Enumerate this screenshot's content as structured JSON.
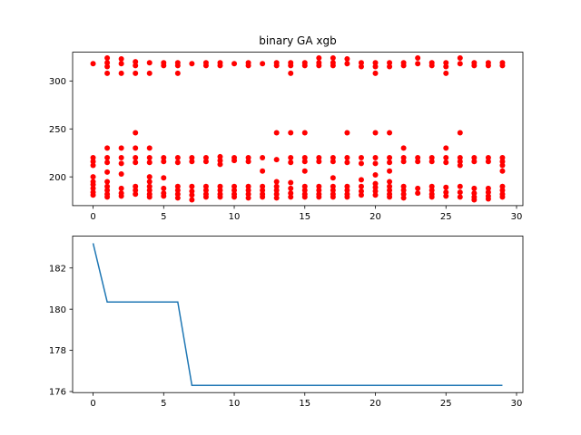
{
  "chart_data": [
    {
      "type": "scatter",
      "title": "binary GA xgb",
      "xlabel": "",
      "ylabel": "",
      "xlim": [
        -1.45,
        30.45
      ],
      "ylim": [
        170,
        330
      ],
      "xticks": [
        0,
        5,
        10,
        15,
        20,
        25,
        30
      ],
      "yticks": [
        200,
        250,
        300
      ],
      "grid": false,
      "color": "#ff0000",
      "series": [
        {
          "points": [
            [
              0,
              318
            ],
            [
              0,
              220
            ],
            [
              0,
              216
            ],
            [
              0,
              212
            ],
            [
              0,
              200
            ],
            [
              0,
              195
            ],
            [
              0,
              192
            ],
            [
              0,
              188
            ],
            [
              0,
              184
            ],
            [
              0,
              181
            ],
            [
              1,
              324
            ],
            [
              1,
              319
            ],
            [
              1,
              315
            ],
            [
              1,
              308
            ],
            [
              1,
              230
            ],
            [
              1,
              220
            ],
            [
              1,
              215
            ],
            [
              1,
              205
            ],
            [
              1,
              195
            ],
            [
              1,
              190
            ],
            [
              1,
              186
            ],
            [
              1,
              182
            ],
            [
              1,
              179
            ],
            [
              2,
              323
            ],
            [
              2,
              318
            ],
            [
              2,
              308
            ],
            [
              2,
              230
            ],
            [
              2,
              220
            ],
            [
              2,
              214
            ],
            [
              2,
              203
            ],
            [
              2,
              188
            ],
            [
              2,
              183
            ],
            [
              2,
              180
            ],
            [
              3,
              320
            ],
            [
              3,
              316
            ],
            [
              3,
              308
            ],
            [
              3,
              246
            ],
            [
              3,
              230
            ],
            [
              3,
              220
            ],
            [
              3,
              215
            ],
            [
              3,
              190
            ],
            [
              3,
              186
            ],
            [
              3,
              182
            ],
            [
              4,
              319
            ],
            [
              4,
              308
            ],
            [
              4,
              230
            ],
            [
              4,
              220
            ],
            [
              4,
              215
            ],
            [
              4,
              200
            ],
            [
              4,
              195
            ],
            [
              4,
              190
            ],
            [
              4,
              186
            ],
            [
              4,
              182
            ],
            [
              4,
              179
            ],
            [
              5,
              319
            ],
            [
              5,
              316
            ],
            [
              5,
              220
            ],
            [
              5,
              216
            ],
            [
              5,
              199
            ],
            [
              5,
              188
            ],
            [
              5,
              183
            ],
            [
              5,
              180
            ],
            [
              6,
              319
            ],
            [
              6,
              316
            ],
            [
              6,
              308
            ],
            [
              6,
              220
            ],
            [
              6,
              215
            ],
            [
              6,
              190
            ],
            [
              6,
              186
            ],
            [
              6,
              182
            ],
            [
              6,
              178
            ],
            [
              7,
              318
            ],
            [
              7,
              220
            ],
            [
              7,
              216
            ],
            [
              7,
              190
            ],
            [
              7,
              185
            ],
            [
              7,
              181
            ],
            [
              7,
              176
            ],
            [
              8,
              319
            ],
            [
              8,
              316
            ],
            [
              8,
              220
            ],
            [
              8,
              216
            ],
            [
              8,
              190
            ],
            [
              8,
              186
            ],
            [
              8,
              182
            ],
            [
              8,
              179
            ],
            [
              9,
              319
            ],
            [
              9,
              316
            ],
            [
              9,
              221
            ],
            [
              9,
              217
            ],
            [
              9,
              213
            ],
            [
              9,
              190
            ],
            [
              9,
              186
            ],
            [
              9,
              182
            ],
            [
              9,
              179
            ],
            [
              10,
              318
            ],
            [
              10,
              220
            ],
            [
              10,
              217
            ],
            [
              10,
              190
            ],
            [
              10,
              186
            ],
            [
              10,
              182
            ],
            [
              10,
              179
            ],
            [
              11,
              319
            ],
            [
              11,
              316
            ],
            [
              11,
              220
            ],
            [
              11,
              216
            ],
            [
              11,
              190
            ],
            [
              11,
              186
            ],
            [
              11,
              182
            ],
            [
              11,
              178
            ],
            [
              12,
              318
            ],
            [
              12,
              220
            ],
            [
              12,
              206
            ],
            [
              12,
              190
            ],
            [
              12,
              186
            ],
            [
              12,
              182
            ],
            [
              12,
              179
            ],
            [
              13,
              319
            ],
            [
              13,
              316
            ],
            [
              13,
              246
            ],
            [
              13,
              218
            ],
            [
              13,
              195
            ],
            [
              13,
              190
            ],
            [
              13,
              186
            ],
            [
              13,
              182
            ],
            [
              13,
              178
            ],
            [
              14,
              319
            ],
            [
              14,
              316
            ],
            [
              14,
              308
            ],
            [
              14,
              246
            ],
            [
              14,
              220
            ],
            [
              14,
              215
            ],
            [
              14,
              194
            ],
            [
              14,
              188
            ],
            [
              14,
              183
            ],
            [
              14,
              179
            ],
            [
              15,
              319
            ],
            [
              15,
              316
            ],
            [
              15,
              246
            ],
            [
              15,
              220
            ],
            [
              15,
              216
            ],
            [
              15,
              206
            ],
            [
              15,
              190
            ],
            [
              15,
              186
            ],
            [
              15,
              182
            ],
            [
              15,
              179
            ],
            [
              16,
              324
            ],
            [
              16,
              319
            ],
            [
              16,
              316
            ],
            [
              16,
              220
            ],
            [
              16,
              216
            ],
            [
              16,
              190
            ],
            [
              16,
              186
            ],
            [
              16,
              182
            ],
            [
              16,
              179
            ],
            [
              17,
              324
            ],
            [
              17,
              319
            ],
            [
              17,
              316
            ],
            [
              17,
              220
            ],
            [
              17,
              216
            ],
            [
              17,
              199
            ],
            [
              17,
              190
            ],
            [
              17,
              186
            ],
            [
              17,
              182
            ],
            [
              17,
              179
            ],
            [
              18,
              323
            ],
            [
              18,
              318
            ],
            [
              18,
              246
            ],
            [
              18,
              220
            ],
            [
              18,
              215
            ],
            [
              18,
              190
            ],
            [
              18,
              186
            ],
            [
              18,
              182
            ],
            [
              18,
              179
            ],
            [
              19,
              319
            ],
            [
              19,
              315
            ],
            [
              19,
              220
            ],
            [
              19,
              214
            ],
            [
              19,
              197
            ],
            [
              19,
              190
            ],
            [
              19,
              185
            ],
            [
              19,
              181
            ],
            [
              20,
              319
            ],
            [
              20,
              315
            ],
            [
              20,
              308
            ],
            [
              20,
              246
            ],
            [
              20,
              220
            ],
            [
              20,
              214
            ],
            [
              20,
              202
            ],
            [
              20,
              193
            ],
            [
              20,
              189
            ],
            [
              20,
              185
            ],
            [
              20,
              181
            ],
            [
              21,
              319
            ],
            [
              21,
              315
            ],
            [
              21,
              246
            ],
            [
              21,
              220
            ],
            [
              21,
              215
            ],
            [
              21,
              206
            ],
            [
              21,
              195
            ],
            [
              21,
              190
            ],
            [
              21,
              186
            ],
            [
              21,
              182
            ],
            [
              21,
              179
            ],
            [
              22,
              319
            ],
            [
              22,
              316
            ],
            [
              22,
              230
            ],
            [
              22,
              220
            ],
            [
              22,
              216
            ],
            [
              22,
              190
            ],
            [
              22,
              186
            ],
            [
              22,
              182
            ],
            [
              22,
              178
            ],
            [
              23,
              324
            ],
            [
              23,
              318
            ],
            [
              23,
              220
            ],
            [
              23,
              216
            ],
            [
              23,
              188
            ],
            [
              23,
              183
            ],
            [
              24,
              319
            ],
            [
              24,
              316
            ],
            [
              24,
              220
            ],
            [
              24,
              216
            ],
            [
              24,
              190
            ],
            [
              24,
              186
            ],
            [
              24,
              182
            ],
            [
              24,
              179
            ],
            [
              25,
              319
            ],
            [
              25,
              315
            ],
            [
              25,
              308
            ],
            [
              25,
              230
            ],
            [
              25,
              220
            ],
            [
              25,
              215
            ],
            [
              25,
              189
            ],
            [
              25,
              184
            ],
            [
              25,
              180
            ],
            [
              26,
              324
            ],
            [
              26,
              318
            ],
            [
              26,
              246
            ],
            [
              26,
              220
            ],
            [
              26,
              216
            ],
            [
              26,
              212
            ],
            [
              26,
              190
            ],
            [
              26,
              184
            ],
            [
              26,
              179
            ],
            [
              27,
              319
            ],
            [
              27,
              316
            ],
            [
              27,
              220
            ],
            [
              27,
              216
            ],
            [
              27,
              188
            ],
            [
              27,
              183
            ],
            [
              27,
              179
            ],
            [
              27,
              176
            ],
            [
              28,
              319
            ],
            [
              28,
              316
            ],
            [
              28,
              220
            ],
            [
              28,
              216
            ],
            [
              28,
              188
            ],
            [
              28,
              184
            ],
            [
              28,
              180
            ],
            [
              28,
              177
            ],
            [
              29,
              319
            ],
            [
              29,
              316
            ],
            [
              29,
              220
            ],
            [
              29,
              216
            ],
            [
              29,
              212
            ],
            [
              29,
              206
            ],
            [
              29,
              190
            ],
            [
              29,
              186
            ],
            [
              29,
              182
            ],
            [
              29,
              179
            ]
          ]
        }
      ]
    },
    {
      "type": "line",
      "title": "",
      "xlabel": "",
      "ylabel": "",
      "xlim": [
        -1.45,
        30.45
      ],
      "ylim": [
        175.95,
        183.55
      ],
      "xticks": [
        0,
        5,
        10,
        15,
        20,
        25,
        30
      ],
      "yticks": [
        176,
        178,
        180,
        182
      ],
      "grid": false,
      "color": "#1f77b4",
      "series": [
        {
          "x": [
            0,
            1,
            2,
            3,
            4,
            5,
            6,
            7,
            8,
            9,
            10,
            11,
            12,
            13,
            14,
            15,
            16,
            17,
            18,
            19,
            20,
            21,
            22,
            23,
            24,
            25,
            26,
            27,
            28,
            29
          ],
          "values": [
            183.2,
            180.35,
            180.35,
            180.35,
            180.35,
            180.35,
            180.35,
            176.3,
            176.3,
            176.3,
            176.3,
            176.3,
            176.3,
            176.3,
            176.3,
            176.3,
            176.3,
            176.3,
            176.3,
            176.3,
            176.3,
            176.3,
            176.3,
            176.3,
            176.3,
            176.3,
            176.3,
            176.3,
            176.3,
            176.3
          ]
        }
      ]
    }
  ]
}
